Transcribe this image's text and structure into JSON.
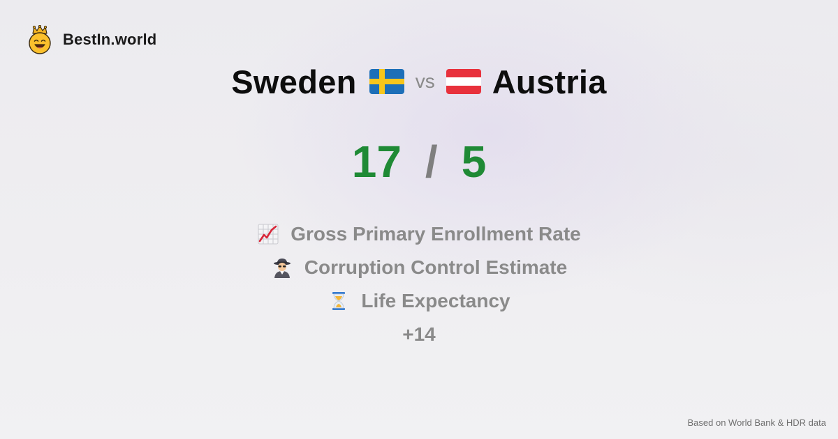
{
  "brand": {
    "name": "BestIn.world",
    "logo_icon": "crowned-smiley-icon"
  },
  "comparison": {
    "left_country": "Sweden",
    "left_flag": "sweden-flag-icon",
    "vs_label": "vs",
    "right_country": "Austria",
    "right_flag": "austria-flag-icon"
  },
  "score": {
    "left": "17",
    "separator": "/",
    "right": "5"
  },
  "metrics": [
    {
      "label": "Gross Primary Enrollment Rate",
      "icon": "chart-increasing-icon"
    },
    {
      "label": "Corruption Control Estimate",
      "icon": "detective-icon"
    },
    {
      "label": "Life Expectancy",
      "icon": "hourglass-icon"
    }
  ],
  "more_label": "+14",
  "footer": {
    "source": "Based on World Bank & HDR data"
  },
  "colors": {
    "score_green": "#1f8a35",
    "muted_gray": "#8a8a8a",
    "sweden_blue": "#1d6fb8",
    "sweden_yellow": "#f7c61b",
    "austria_red": "#e8313c"
  }
}
